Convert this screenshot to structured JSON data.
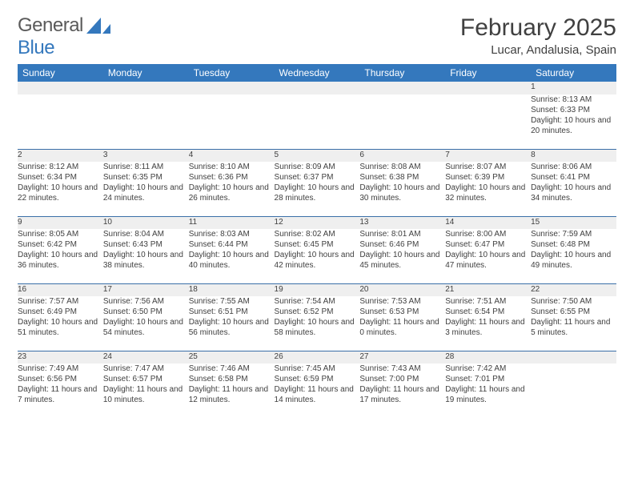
{
  "brand": {
    "word1": "General",
    "word2": "Blue",
    "accent_color": "#3478bd",
    "text_color": "#5a5a5a"
  },
  "header": {
    "month_title": "February 2025",
    "location": "Lucar, Andalusia, Spain"
  },
  "style": {
    "header_bg": "#3478bd",
    "header_fg": "#ffffff",
    "daynum_bg": "#efefef",
    "rule_color": "#3a6fa8",
    "body_font_size": 10
  },
  "day_headers": [
    "Sunday",
    "Monday",
    "Tuesday",
    "Wednesday",
    "Thursday",
    "Friday",
    "Saturday"
  ],
  "weeks": [
    [
      null,
      null,
      null,
      null,
      null,
      null,
      {
        "n": "1",
        "sunrise": "Sunrise: 8:13 AM",
        "sunset": "Sunset: 6:33 PM",
        "daylight": "Daylight: 10 hours and 20 minutes."
      }
    ],
    [
      {
        "n": "2",
        "sunrise": "Sunrise: 8:12 AM",
        "sunset": "Sunset: 6:34 PM",
        "daylight": "Daylight: 10 hours and 22 minutes."
      },
      {
        "n": "3",
        "sunrise": "Sunrise: 8:11 AM",
        "sunset": "Sunset: 6:35 PM",
        "daylight": "Daylight: 10 hours and 24 minutes."
      },
      {
        "n": "4",
        "sunrise": "Sunrise: 8:10 AM",
        "sunset": "Sunset: 6:36 PM",
        "daylight": "Daylight: 10 hours and 26 minutes."
      },
      {
        "n": "5",
        "sunrise": "Sunrise: 8:09 AM",
        "sunset": "Sunset: 6:37 PM",
        "daylight": "Daylight: 10 hours and 28 minutes."
      },
      {
        "n": "6",
        "sunrise": "Sunrise: 8:08 AM",
        "sunset": "Sunset: 6:38 PM",
        "daylight": "Daylight: 10 hours and 30 minutes."
      },
      {
        "n": "7",
        "sunrise": "Sunrise: 8:07 AM",
        "sunset": "Sunset: 6:39 PM",
        "daylight": "Daylight: 10 hours and 32 minutes."
      },
      {
        "n": "8",
        "sunrise": "Sunrise: 8:06 AM",
        "sunset": "Sunset: 6:41 PM",
        "daylight": "Daylight: 10 hours and 34 minutes."
      }
    ],
    [
      {
        "n": "9",
        "sunrise": "Sunrise: 8:05 AM",
        "sunset": "Sunset: 6:42 PM",
        "daylight": "Daylight: 10 hours and 36 minutes."
      },
      {
        "n": "10",
        "sunrise": "Sunrise: 8:04 AM",
        "sunset": "Sunset: 6:43 PM",
        "daylight": "Daylight: 10 hours and 38 minutes."
      },
      {
        "n": "11",
        "sunrise": "Sunrise: 8:03 AM",
        "sunset": "Sunset: 6:44 PM",
        "daylight": "Daylight: 10 hours and 40 minutes."
      },
      {
        "n": "12",
        "sunrise": "Sunrise: 8:02 AM",
        "sunset": "Sunset: 6:45 PM",
        "daylight": "Daylight: 10 hours and 42 minutes."
      },
      {
        "n": "13",
        "sunrise": "Sunrise: 8:01 AM",
        "sunset": "Sunset: 6:46 PM",
        "daylight": "Daylight: 10 hours and 45 minutes."
      },
      {
        "n": "14",
        "sunrise": "Sunrise: 8:00 AM",
        "sunset": "Sunset: 6:47 PM",
        "daylight": "Daylight: 10 hours and 47 minutes."
      },
      {
        "n": "15",
        "sunrise": "Sunrise: 7:59 AM",
        "sunset": "Sunset: 6:48 PM",
        "daylight": "Daylight: 10 hours and 49 minutes."
      }
    ],
    [
      {
        "n": "16",
        "sunrise": "Sunrise: 7:57 AM",
        "sunset": "Sunset: 6:49 PM",
        "daylight": "Daylight: 10 hours and 51 minutes."
      },
      {
        "n": "17",
        "sunrise": "Sunrise: 7:56 AM",
        "sunset": "Sunset: 6:50 PM",
        "daylight": "Daylight: 10 hours and 54 minutes."
      },
      {
        "n": "18",
        "sunrise": "Sunrise: 7:55 AM",
        "sunset": "Sunset: 6:51 PM",
        "daylight": "Daylight: 10 hours and 56 minutes."
      },
      {
        "n": "19",
        "sunrise": "Sunrise: 7:54 AM",
        "sunset": "Sunset: 6:52 PM",
        "daylight": "Daylight: 10 hours and 58 minutes."
      },
      {
        "n": "20",
        "sunrise": "Sunrise: 7:53 AM",
        "sunset": "Sunset: 6:53 PM",
        "daylight": "Daylight: 11 hours and 0 minutes."
      },
      {
        "n": "21",
        "sunrise": "Sunrise: 7:51 AM",
        "sunset": "Sunset: 6:54 PM",
        "daylight": "Daylight: 11 hours and 3 minutes."
      },
      {
        "n": "22",
        "sunrise": "Sunrise: 7:50 AM",
        "sunset": "Sunset: 6:55 PM",
        "daylight": "Daylight: 11 hours and 5 minutes."
      }
    ],
    [
      {
        "n": "23",
        "sunrise": "Sunrise: 7:49 AM",
        "sunset": "Sunset: 6:56 PM",
        "daylight": "Daylight: 11 hours and 7 minutes."
      },
      {
        "n": "24",
        "sunrise": "Sunrise: 7:47 AM",
        "sunset": "Sunset: 6:57 PM",
        "daylight": "Daylight: 11 hours and 10 minutes."
      },
      {
        "n": "25",
        "sunrise": "Sunrise: 7:46 AM",
        "sunset": "Sunset: 6:58 PM",
        "daylight": "Daylight: 11 hours and 12 minutes."
      },
      {
        "n": "26",
        "sunrise": "Sunrise: 7:45 AM",
        "sunset": "Sunset: 6:59 PM",
        "daylight": "Daylight: 11 hours and 14 minutes."
      },
      {
        "n": "27",
        "sunrise": "Sunrise: 7:43 AM",
        "sunset": "Sunset: 7:00 PM",
        "daylight": "Daylight: 11 hours and 17 minutes."
      },
      {
        "n": "28",
        "sunrise": "Sunrise: 7:42 AM",
        "sunset": "Sunset: 7:01 PM",
        "daylight": "Daylight: 11 hours and 19 minutes."
      },
      null
    ]
  ]
}
